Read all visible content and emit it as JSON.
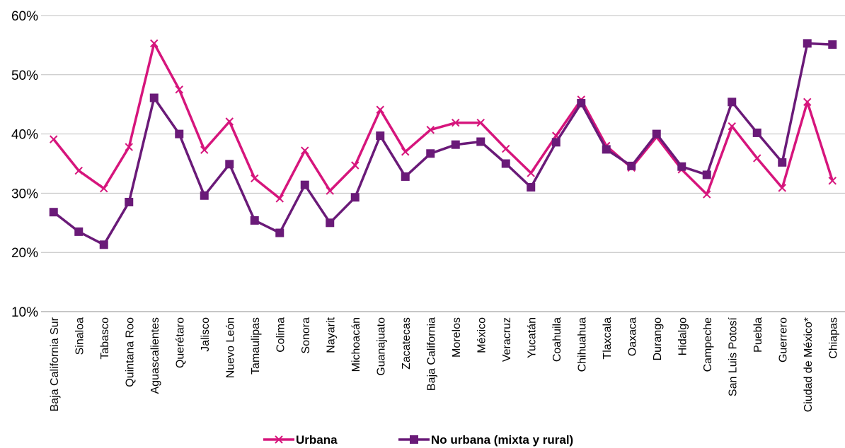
{
  "chart_data": {
    "type": "line",
    "title": "",
    "xlabel": "",
    "ylabel": "",
    "ylim": [
      0.1,
      0.6
    ],
    "yticks": [
      "10%",
      "20%",
      "30%",
      "40%",
      "50%",
      "60%"
    ],
    "ytick_values": [
      0.1,
      0.2,
      0.3,
      0.4,
      0.5,
      0.6
    ],
    "grid": "horizontal",
    "legend_position": "bottom",
    "categories": [
      "Baja California Sur",
      "Sinaloa",
      "Tabasco",
      "Quintana Roo",
      "Aguascalientes",
      "Querétaro",
      "Jalisco",
      "Nuevo León",
      "Tamaulipas",
      "Colima",
      "Sonora",
      "Nayarit",
      "Michoacán",
      "Guanajuato",
      "Zacatecas",
      "Baja California",
      "Morelos",
      "México",
      "Veracruz",
      "Yucatán",
      "Coahuila",
      "Chihuahua",
      "Tlaxcala",
      "Oaxaca",
      "Durango",
      "Hidalgo",
      "Campeche",
      "San Luis Potosí",
      "Puebla",
      "Guerrero",
      "Ciudad de México*",
      "Chiapas"
    ],
    "series": [
      {
        "name": "Urbana",
        "color": "#d6157c",
        "marker": "x",
        "values": [
          0.391,
          0.338,
          0.308,
          0.378,
          0.553,
          0.475,
          0.373,
          0.421,
          0.325,
          0.291,
          0.372,
          0.304,
          0.347,
          0.441,
          0.37,
          0.407,
          0.419,
          0.419,
          0.375,
          0.334,
          0.397,
          0.458,
          0.38,
          0.343,
          0.395,
          0.34,
          0.298,
          0.413,
          0.359,
          0.309,
          0.454,
          0.321
        ]
      },
      {
        "name": "No urbana (mixta y rural)",
        "color": "#6a1a78",
        "marker": "square",
        "values": [
          0.268,
          0.235,
          0.213,
          0.285,
          0.461,
          0.4,
          0.296,
          0.349,
          0.254,
          0.233,
          0.314,
          0.25,
          0.293,
          0.397,
          0.328,
          0.367,
          0.382,
          0.387,
          0.35,
          0.31,
          0.386,
          0.452,
          0.374,
          0.346,
          0.4,
          0.345,
          0.331,
          0.454,
          0.402,
          0.352,
          0.553,
          0.551
        ]
      }
    ]
  }
}
